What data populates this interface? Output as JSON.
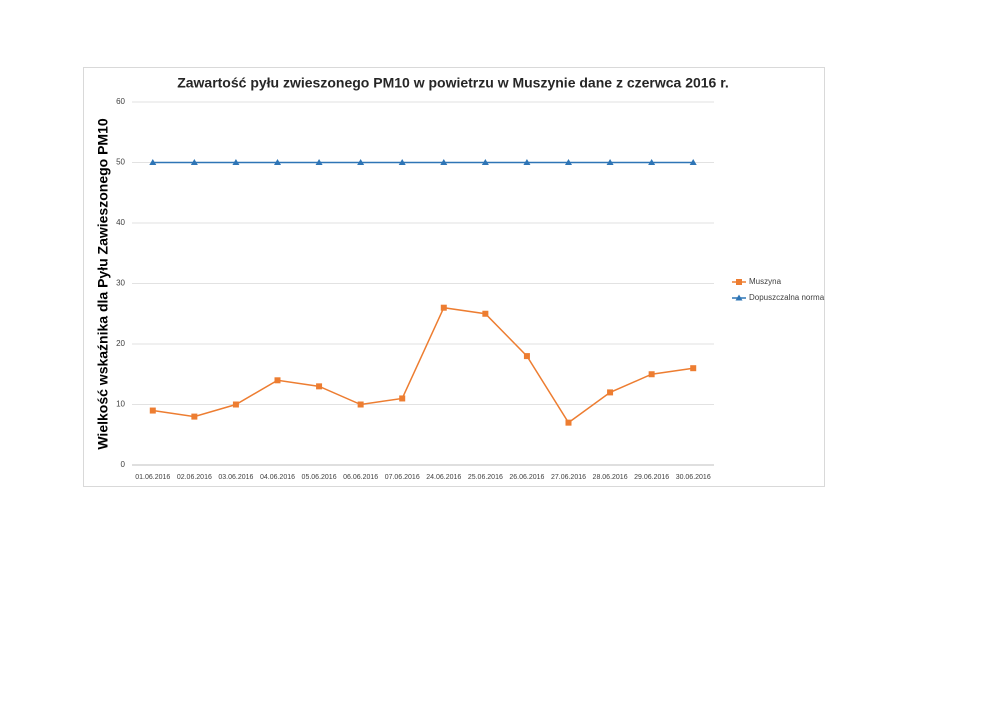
{
  "chart_data": {
    "type": "line",
    "title": "Zawartość pyłu zwieszonego PM10 w powietrzu w Muszynie dane z czerwca 2016 r.",
    "y_label": "Wielkość  wskaźnika dla Pyłu Zawieszonego PM10",
    "categories": [
      "01.06.2016",
      "02.06.2016",
      "03.06.2016",
      "04.06.2016",
      "05.06.2016",
      "06.06.2016",
      "07.06.2016",
      "24.06.2016",
      "25.06.2016",
      "26.06.2016",
      "27.06.2016",
      "28.06.2016",
      "29.06.2016",
      "30.06.2016"
    ],
    "series": [
      {
        "name": "Muszyna",
        "color": "#ed7d31",
        "marker": "square",
        "values": [
          9,
          8,
          10,
          14,
          13,
          10,
          11,
          26,
          25,
          18,
          7,
          12,
          15,
          16
        ]
      },
      {
        "name": "Dopuszczalna norma",
        "color": "#2e75b6",
        "marker": "triangle",
        "values": [
          50,
          50,
          50,
          50,
          50,
          50,
          50,
          50,
          50,
          50,
          50,
          50,
          50,
          50
        ]
      }
    ],
    "ylim": [
      0,
      60
    ],
    "yticks": [
      0,
      10,
      20,
      30,
      40,
      50,
      60
    ],
    "grid": true,
    "legend": "right"
  }
}
